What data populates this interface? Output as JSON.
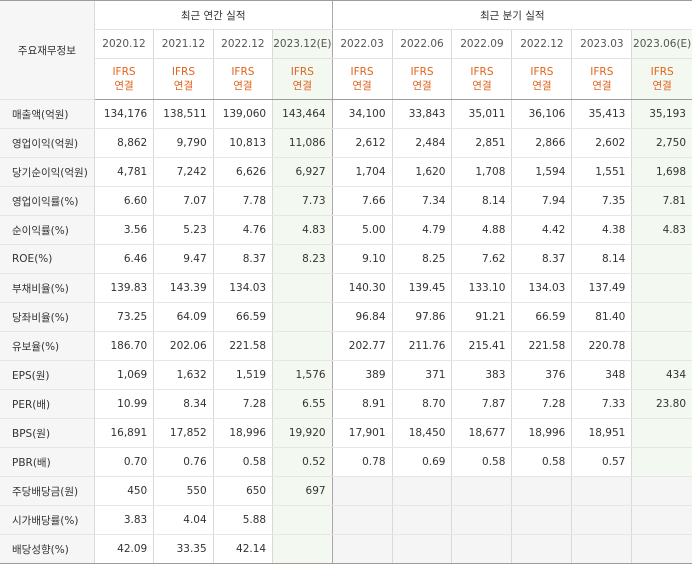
{
  "corner_label": "주요재무정보",
  "group_annual": "최근 연간 실적",
  "group_quarterly": "최근 분기 실적",
  "accounting_line1": "IFRS",
  "accounting_line2": "연결",
  "periods": [
    {
      "label": "2020.12",
      "type": "annual",
      "estimate": false
    },
    {
      "label": "2021.12",
      "type": "annual",
      "estimate": false
    },
    {
      "label": "2022.12",
      "type": "annual",
      "estimate": false
    },
    {
      "label": "2023.12(E)",
      "type": "annual",
      "estimate": true
    },
    {
      "label": "2022.03",
      "type": "quarter",
      "estimate": false
    },
    {
      "label": "2022.06",
      "type": "quarter",
      "estimate": false
    },
    {
      "label": "2022.09",
      "type": "quarter",
      "estimate": false
    },
    {
      "label": "2022.12",
      "type": "quarter",
      "estimate": false
    },
    {
      "label": "2023.03",
      "type": "quarter",
      "estimate": false
    },
    {
      "label": "2023.06(E)",
      "type": "quarter",
      "estimate": true
    }
  ],
  "rows": [
    {
      "label": "매출액(억원)",
      "values": [
        "134,176",
        "138,511",
        "139,060",
        "143,464",
        "34,100",
        "33,843",
        "35,011",
        "36,106",
        "35,413",
        "35,193"
      ]
    },
    {
      "label": "영업이익(억원)",
      "values": [
        "8,862",
        "9,790",
        "10,813",
        "11,086",
        "2,612",
        "2,484",
        "2,851",
        "2,866",
        "2,602",
        "2,750"
      ]
    },
    {
      "label": "당기순이익(억원)",
      "values": [
        "4,781",
        "7,242",
        "6,626",
        "6,927",
        "1,704",
        "1,620",
        "1,708",
        "1,594",
        "1,551",
        "1,698"
      ]
    },
    {
      "label": "영업이익률(%)",
      "values": [
        "6.60",
        "7.07",
        "7.78",
        "7.73",
        "7.66",
        "7.34",
        "8.14",
        "7.94",
        "7.35",
        "7.81"
      ]
    },
    {
      "label": "순이익률(%)",
      "values": [
        "3.56",
        "5.23",
        "4.76",
        "4.83",
        "5.00",
        "4.79",
        "4.88",
        "4.42",
        "4.38",
        "4.83"
      ]
    },
    {
      "label": "ROE(%)",
      "values": [
        "6.46",
        "9.47",
        "8.37",
        "8.23",
        "9.10",
        "8.25",
        "7.62",
        "8.37",
        "8.14",
        ""
      ]
    },
    {
      "label": "부채비율(%)",
      "values": [
        "139.83",
        "143.39",
        "134.03",
        "",
        "140.30",
        "139.45",
        "133.10",
        "134.03",
        "137.49",
        ""
      ]
    },
    {
      "label": "당좌비율(%)",
      "values": [
        "73.25",
        "64.09",
        "66.59",
        "",
        "96.84",
        "97.86",
        "91.21",
        "66.59",
        "81.40",
        ""
      ]
    },
    {
      "label": "유보율(%)",
      "values": [
        "186.70",
        "202.06",
        "221.58",
        "",
        "202.77",
        "211.76",
        "215.41",
        "221.58",
        "220.78",
        ""
      ]
    },
    {
      "label": "EPS(원)",
      "values": [
        "1,069",
        "1,632",
        "1,519",
        "1,576",
        "389",
        "371",
        "383",
        "376",
        "348",
        "434"
      ]
    },
    {
      "label": "PER(배)",
      "values": [
        "10.99",
        "8.34",
        "7.28",
        "6.55",
        "8.91",
        "8.70",
        "7.87",
        "7.28",
        "7.33",
        "23.80"
      ]
    },
    {
      "label": "BPS(원)",
      "values": [
        "16,891",
        "17,852",
        "18,996",
        "19,920",
        "17,901",
        "18,450",
        "18,677",
        "18,996",
        "18,951",
        ""
      ]
    },
    {
      "label": "PBR(배)",
      "values": [
        "0.70",
        "0.76",
        "0.58",
        "0.52",
        "0.78",
        "0.69",
        "0.58",
        "0.58",
        "0.57",
        ""
      ]
    },
    {
      "label": "주당배당금(원)",
      "values": [
        "450",
        "550",
        "650",
        "697",
        null,
        null,
        null,
        null,
        null,
        null
      ]
    },
    {
      "label": "시가배당률(%)",
      "values": [
        "3.83",
        "4.04",
        "5.88",
        "",
        null,
        null,
        null,
        null,
        null,
        null
      ]
    },
    {
      "label": "배당성향(%)",
      "values": [
        "42.09",
        "33.35",
        "42.14",
        "",
        null,
        null,
        null,
        null,
        null,
        null
      ]
    }
  ]
}
